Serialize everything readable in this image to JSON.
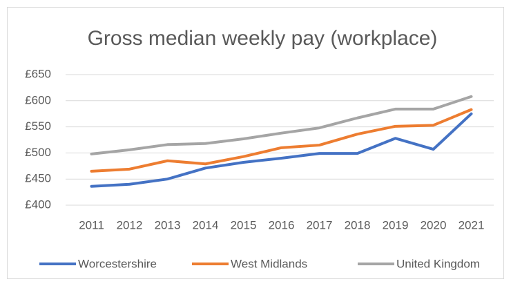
{
  "chart_data": {
    "type": "line",
    "title": "Gross median weekly pay (workplace)",
    "categories": [
      "2011",
      "2012",
      "2013",
      "2014",
      "2015",
      "2016",
      "2017",
      "2018",
      "2019",
      "2020",
      "2021"
    ],
    "series": [
      {
        "name": "Worcestershire",
        "color": "#4472c4",
        "values": [
          436,
          440,
          450,
          471,
          482,
          490,
          499,
          499,
          528,
          507,
          575
        ]
      },
      {
        "name": "West Midlands",
        "color": "#ed7d31",
        "values": [
          465,
          469,
          485,
          479,
          493,
          510,
          515,
          536,
          551,
          553,
          583
        ]
      },
      {
        "name": "United Kingdom",
        "color": "#a5a5a5",
        "values": [
          498,
          506,
          516,
          518,
          527,
          538,
          548,
          567,
          584,
          584,
          608
        ]
      }
    ],
    "ylim": [
      400,
      650
    ],
    "yticks": [
      {
        "value": 400,
        "label": "£400"
      },
      {
        "value": 450,
        "label": "£450"
      },
      {
        "value": 500,
        "label": "£500"
      },
      {
        "value": 550,
        "label": "£550"
      },
      {
        "value": 600,
        "label": "£600"
      },
      {
        "value": 650,
        "label": "£650"
      }
    ],
    "grid": true,
    "legend": "bottom"
  }
}
